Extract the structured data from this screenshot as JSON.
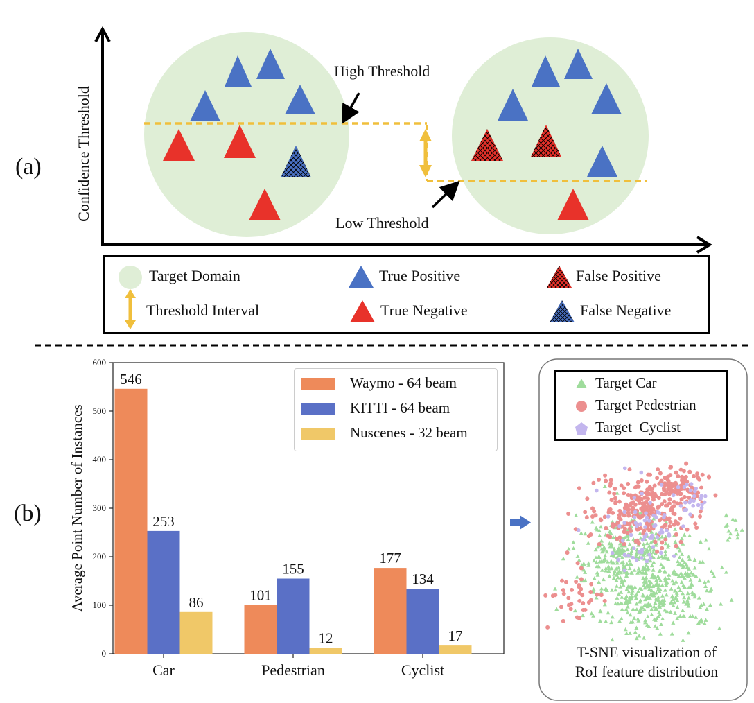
{
  "panels": {
    "a_label": "(a)",
    "b_label": "(b)"
  },
  "diagram_a": {
    "y_axis_label": "Confidence  Threshold",
    "high_threshold_label": "High Threshold",
    "low_threshold_label": "Low Threshold",
    "legend": {
      "target_domain": "Target Domain",
      "threshold_interval": "Threshold Interval",
      "true_positive": "True Positive",
      "true_negative": "True Negative",
      "false_positive": "False Positive",
      "false_negative": "False Negative"
    },
    "colors": {
      "domain": "#dfeed6",
      "positive": "#4a72c4",
      "negative": "#e8322a",
      "threshold": "#f0bf3c"
    }
  },
  "chart_data": {
    "type": "bar",
    "categories": [
      "Car",
      "Pedestrian",
      "Cyclist"
    ],
    "series": [
      {
        "name": "Waymo - 64 beam",
        "values": [
          546,
          101,
          177
        ],
        "color": "#ee8a5a"
      },
      {
        "name": "KITTI - 64 beam",
        "values": [
          253,
          155,
          134
        ],
        "color": "#5a70c6"
      },
      {
        "name": "Nuscenes - 32 beam",
        "values": [
          86,
          12,
          17
        ],
        "color": "#f0c868"
      }
    ],
    "ylabel": "Average Point Number of Instances",
    "ylim": [
      0,
      600
    ],
    "yticks": [
      0,
      100,
      200,
      300,
      400,
      500,
      600
    ],
    "legend_placement": "top-right",
    "grid": false
  },
  "tsne": {
    "legend": [
      "Target Car",
      "Target Pedestrian",
      "Target  Cyclist"
    ],
    "caption_line1": "T-SNE visualization of",
    "caption_line2": "RoI feature distribution",
    "colors": {
      "car": "#9fdc9c",
      "pedestrian": "#ec8f8f",
      "cyclist": "#c3b6ee"
    }
  }
}
